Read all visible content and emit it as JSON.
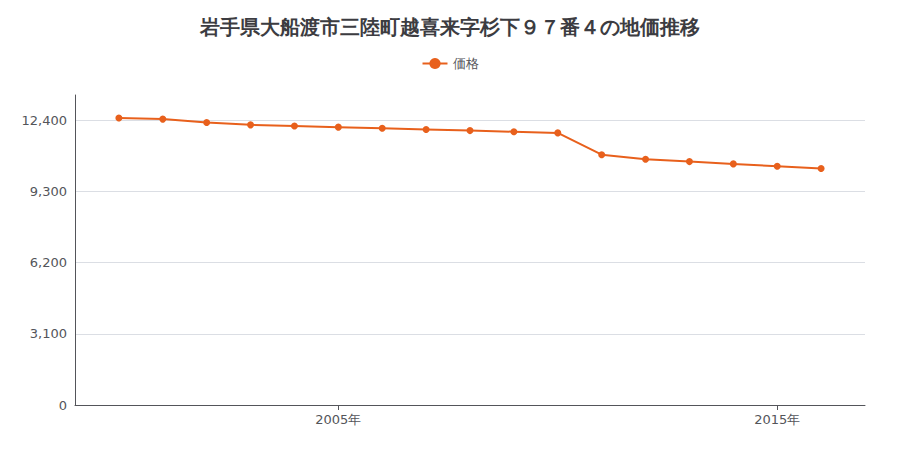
{
  "chart_data": {
    "type": "line",
    "title": "岩手県大船渡市三陸町越喜来字杉下９７番４の地価推移",
    "x": [
      2000,
      2001,
      2002,
      2003,
      2004,
      2005,
      2006,
      2007,
      2008,
      2009,
      2010,
      2011,
      2012,
      2013,
      2014,
      2015,
      2016
    ],
    "series": [
      {
        "name": "価格",
        "color": "#e8601c",
        "marker": "circle",
        "values": [
          12500,
          12450,
          12300,
          12200,
          12150,
          12100,
          12050,
          12000,
          11950,
          11900,
          11850,
          10900,
          10700,
          10600,
          10500,
          10400,
          10300
        ]
      }
    ],
    "xlim": [
      1999,
      2017
    ],
    "xticks": [
      {
        "value": 2005,
        "label": "2005年"
      },
      {
        "value": 2015,
        "label": "2015年"
      }
    ],
    "ylim": [
      0,
      13500
    ],
    "yticks": [
      0,
      {
        "value": 3100,
        "label": "3,100"
      },
      {
        "value": 6200,
        "label": "6,200"
      },
      {
        "value": 9300,
        "label": "9,300"
      },
      {
        "value": 12400,
        "label": "12,400"
      }
    ],
    "grid": true,
    "legend": "top"
  }
}
